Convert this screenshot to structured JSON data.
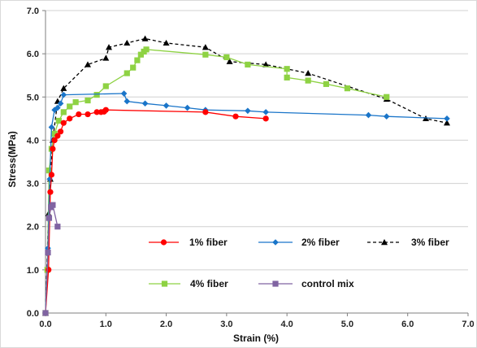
{
  "chart_data": {
    "type": "line",
    "title": "",
    "xlabel": "Strain (%)",
    "ylabel": "Stress(MPa)",
    "xlim": [
      0,
      7
    ],
    "ylim": [
      0,
      7
    ],
    "x_ticks": [
      "0.0",
      "1.0",
      "2.0",
      "3.0",
      "4.0",
      "5.0",
      "6.0",
      "7.0"
    ],
    "y_ticks": [
      "0.0",
      "1.0",
      "2.0",
      "3.0",
      "4.0",
      "5.0",
      "6.0",
      "7.0"
    ],
    "grid": "horizontal",
    "legend_position": "lower-center",
    "series": [
      {
        "name": "1% fiber",
        "color": "#ff0000",
        "marker": "circle",
        "line_style": "solid",
        "x": [
          0.0,
          0.05,
          0.08,
          0.1,
          0.12,
          0.15,
          0.2,
          0.25,
          0.3,
          0.4,
          0.55,
          0.7,
          0.85,
          0.92,
          0.97,
          1.0,
          2.65,
          3.15,
          3.65
        ],
        "y": [
          0.0,
          1.0,
          2.8,
          3.2,
          3.8,
          4.0,
          4.1,
          4.2,
          4.4,
          4.5,
          4.6,
          4.6,
          4.65,
          4.65,
          4.66,
          4.7,
          4.65,
          4.55,
          4.5
        ]
      },
      {
        "name": "2% fiber",
        "color": "#1a75c9",
        "marker": "diamond",
        "line_style": "solid",
        "x": [
          0.0,
          0.04,
          0.07,
          0.1,
          0.15,
          0.2,
          0.25,
          0.3,
          1.3,
          1.35,
          1.65,
          2.0,
          2.35,
          2.65,
          3.35,
          3.65,
          5.35,
          5.65,
          6.65
        ],
        "y": [
          0.0,
          1.5,
          3.1,
          4.3,
          4.7,
          4.75,
          4.85,
          5.05,
          5.08,
          4.9,
          4.85,
          4.8,
          4.75,
          4.7,
          4.68,
          4.65,
          4.58,
          4.55,
          4.5
        ]
      },
      {
        "name": "3% fiber",
        "color": "#000000",
        "marker": "triangle",
        "line_style": "dashed",
        "x": [
          0.0,
          0.05,
          0.08,
          0.12,
          0.2,
          0.3,
          0.7,
          1.0,
          1.05,
          1.35,
          1.65,
          2.0,
          2.65,
          3.05,
          3.65,
          4.35,
          5.65,
          6.3,
          6.65
        ],
        "y": [
          0.0,
          2.3,
          3.1,
          4.0,
          4.9,
          5.2,
          5.75,
          5.9,
          6.15,
          6.25,
          6.35,
          6.25,
          6.15,
          5.82,
          5.75,
          5.55,
          4.95,
          4.5,
          4.4
        ]
      },
      {
        "name": "4% fiber",
        "color": "#8ed243",
        "marker": "square",
        "line_style": "solid",
        "x": [
          0.0,
          0.03,
          0.06,
          0.1,
          0.15,
          0.22,
          0.3,
          0.4,
          0.5,
          0.7,
          0.85,
          1.0,
          1.35,
          1.45,
          1.52,
          1.58,
          1.63,
          1.67,
          2.65,
          3.0,
          3.35,
          4.0,
          4.0,
          4.35,
          4.65,
          5.0,
          5.65
        ],
        "y": [
          0.0,
          1.0,
          3.3,
          3.8,
          4.15,
          4.45,
          4.65,
          4.78,
          4.88,
          4.92,
          5.05,
          5.25,
          5.55,
          5.68,
          5.85,
          5.98,
          6.05,
          6.1,
          5.98,
          5.92,
          5.75,
          5.65,
          5.45,
          5.38,
          5.3,
          5.2,
          5.0
        ]
      },
      {
        "name": "control mix",
        "color": "#8064a2",
        "marker": "square",
        "line_style": "solid",
        "x": [
          0.0,
          0.04,
          0.06,
          0.09,
          0.12,
          0.2
        ],
        "y": [
          0.0,
          1.4,
          2.2,
          2.45,
          2.5,
          2.0
        ]
      }
    ]
  }
}
